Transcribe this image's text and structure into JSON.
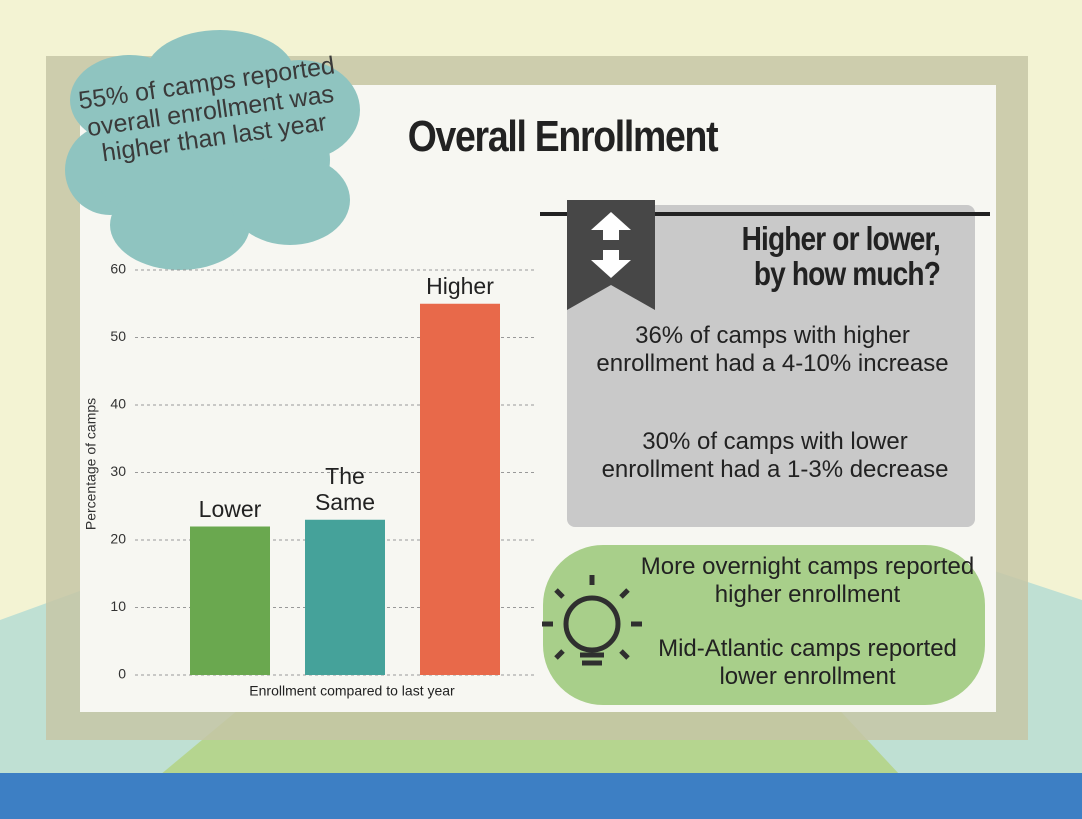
{
  "chart_data": {
    "type": "bar",
    "title": "Overall Enrollment",
    "categories": [
      "Lower",
      "The Same",
      "Higher"
    ],
    "values": [
      22,
      23,
      55
    ],
    "colors": [
      "#6aa84f",
      "#45a29a",
      "#e8694a"
    ],
    "ylim": [
      0,
      60
    ],
    "yticks": [
      0,
      10,
      20,
      30,
      40,
      50,
      60
    ],
    "grid": true,
    "xlabel": "Enrollment compared to last year",
    "ylabel": "Percentage of camps"
  },
  "callout": {
    "text": "55% of camps reported overall enrollment was higher than last year"
  },
  "panel": {
    "heading": "Higher or lower, by how much?",
    "notes": [
      "36% of camps with higher enrollment had a 4-10% increase",
      "30% of camps with lower enrollment had a 1-3% decrease"
    ]
  },
  "tips": [
    "More overnight camps reported higher enrollment",
    "Mid-Atlantic camps reported lower enrollment"
  ]
}
